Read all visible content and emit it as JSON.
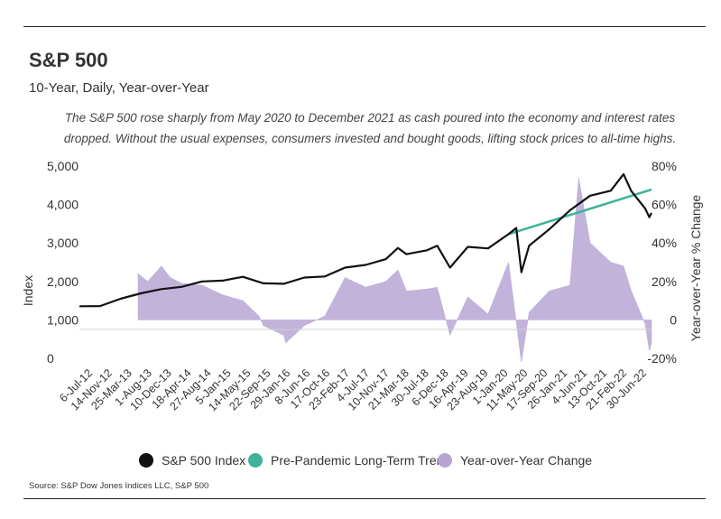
{
  "header": {
    "title": "S&P 500",
    "subtitle": "10-Year, Daily, Year-over-Year",
    "description": "The S&P 500 rose sharply from May 2020 to December 2021 as cash poured into the economy and interest rates dropped. Without the usual expenses, consumers invested and bought goods, lifting stock prices to all-time highs."
  },
  "source": "Source:  S&P Dow Jones Indices LLC, S&P 500",
  "colors": {
    "index": "#111111",
    "trend": "#3fb39a",
    "yoy": "#b7a6d3"
  },
  "chart_data": {
    "type": "line",
    "title": "S&P 500",
    "subtitle": "10-Year, Daily, Year-over-Year",
    "ylabel": "Index",
    "y2label": "Year-over-Year % Change",
    "ylim": [
      0,
      5000
    ],
    "y2lim": [
      -20,
      80
    ],
    "y_ticks": [
      "5,000",
      "4,000",
      "3,000",
      "2,000",
      "1,000",
      "0"
    ],
    "y2_ticks": [
      "80%",
      "60%",
      "40%",
      "20%",
      "0",
      "-20%"
    ],
    "x_ticks": [
      "6-Jul-12",
      "14-Nov-12",
      "25-Mar-13",
      "1-Aug-13",
      "10-Dec-13",
      "18-Apr-14",
      "27-Aug-14",
      "5-Jan-15",
      "14-May-15",
      "22-Sep-15",
      "29-Jan-16",
      "8-Jun-16",
      "17-Oct-16",
      "23-Feb-17",
      "4-Jul-17",
      "10-Nov-17",
      "21-Mar-18",
      "30-Jul-18",
      "6-Dec-18",
      "16-Apr-19",
      "23-Aug-19",
      "1-Jan-20",
      "11-May-20",
      "17-Sep-20",
      "26-Jan-21",
      "4-Jun-21",
      "13-Oct-21",
      "21-Feb-22",
      "30-Jun-22"
    ],
    "legend": [
      "S&P 500 Index",
      "Pre-Pandemic Long-Term Trend",
      "Year-over-Year Change"
    ],
    "legend_position": "bottom",
    "grid": false,
    "series": [
      {
        "name": "S&P 500 Index",
        "kind": "line",
        "axis": "left",
        "dates": [
          "2012-07-06",
          "2012-11-14",
          "2013-03-25",
          "2013-08-01",
          "2013-12-10",
          "2014-04-18",
          "2014-08-27",
          "2015-01-05",
          "2015-05-14",
          "2015-09-22",
          "2016-01-29",
          "2016-06-08",
          "2016-10-17",
          "2017-02-23",
          "2017-07-04",
          "2017-11-10",
          "2018-01-26",
          "2018-03-21",
          "2018-07-30",
          "2018-10-03",
          "2018-12-24",
          "2019-04-16",
          "2019-08-23",
          "2020-01-01",
          "2020-02-19",
          "2020-03-23",
          "2020-05-11",
          "2020-09-17",
          "2021-01-26",
          "2021-06-04",
          "2021-10-13",
          "2022-01-03",
          "2022-02-21",
          "2022-05-20",
          "2022-06-16",
          "2022-06-30"
        ],
        "values": [
          1355,
          1360,
          1550,
          1690,
          1800,
          1860,
          2000,
          2020,
          2120,
          1950,
          1940,
          2100,
          2130,
          2360,
          2430,
          2580,
          2870,
          2710,
          2810,
          2930,
          2360,
          2900,
          2860,
          3230,
          3390,
          2240,
          2930,
          3360,
          3850,
          4230,
          4360,
          4790,
          4350,
          3900,
          3670,
          3785
        ]
      },
      {
        "name": "Pre-Pandemic Long-Term Trend",
        "kind": "line",
        "axis": "left",
        "dates": [
          "2020-01-01",
          "2022-06-30"
        ],
        "values": [
          3230,
          4390
        ]
      },
      {
        "name": "Year-over-Year Change",
        "kind": "area",
        "axis": "right",
        "dates": [
          "2013-07-15",
          "2013-09-15",
          "2013-12-10",
          "2014-02-05",
          "2014-04-18",
          "2014-08-27",
          "2015-01-05",
          "2015-05-14",
          "2015-08-24",
          "2015-09-22",
          "2016-01-29",
          "2016-02-11",
          "2016-06-08",
          "2016-10-17",
          "2017-02-23",
          "2017-07-04",
          "2017-11-10",
          "2018-01-26",
          "2018-03-21",
          "2018-07-30",
          "2018-10-03",
          "2018-12-24",
          "2019-04-16",
          "2019-08-23",
          "2020-01-01",
          "2020-03-23",
          "2020-05-11",
          "2020-09-17",
          "2021-01-26",
          "2021-03-23",
          "2021-06-04",
          "2021-10-13",
          "2022-01-03",
          "2022-02-21",
          "2022-05-20",
          "2022-06-16",
          "2022-06-30"
        ],
        "values": [
          24,
          20,
          28,
          22,
          19,
          18,
          13,
          10,
          2,
          -3,
          -8,
          -12,
          -3,
          2,
          22,
          17,
          20,
          26,
          15,
          16,
          17,
          -8,
          12,
          3,
          30,
          -22,
          4,
          15,
          18,
          74,
          40,
          30,
          28,
          15,
          -2,
          -16,
          -12
        ]
      }
    ]
  }
}
